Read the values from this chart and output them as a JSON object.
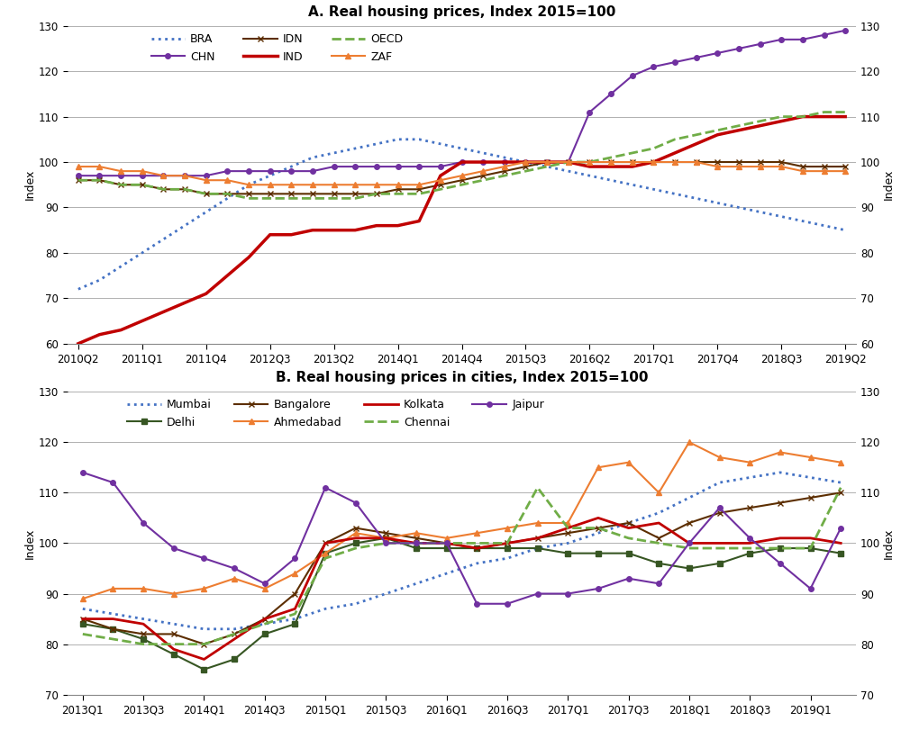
{
  "title_a": "A. Real housing prices, Index 2015=100",
  "title_b": "B. Real housing prices in cities, Index 2015=100",
  "ylabel": "Index",
  "ylim_a": [
    60,
    130
  ],
  "ylim_b": [
    70,
    130
  ],
  "yticks_a": [
    60,
    70,
    80,
    90,
    100,
    110,
    120,
    130
  ],
  "yticks_b": [
    70,
    80,
    90,
    100,
    110,
    120,
    130
  ],
  "panel_a": {
    "n_points": 37,
    "xtick_positions": [
      0,
      3,
      6,
      9,
      12,
      15,
      18,
      21,
      24,
      27,
      30,
      33,
      36
    ],
    "xtick_labels": [
      "2010Q2",
      "2011Q1",
      "2011Q4",
      "2012Q3",
      "2013Q2",
      "2014Q1",
      "2014Q4",
      "2015Q3",
      "2016Q2",
      "2017Q1",
      "2017Q4",
      "2018Q3",
      "2019Q2"
    ],
    "series": {
      "BRA": {
        "color": "#4472C4",
        "linestyle": "dotted",
        "marker": null,
        "linewidth": 2.0,
        "markersize": 0,
        "data_y": [
          72,
          74,
          77,
          80,
          83,
          86,
          89,
          92,
          95,
          97,
          99,
          101,
          102,
          103,
          104,
          105,
          105,
          104,
          103,
          102,
          101,
          100,
          99,
          98,
          97,
          96,
          95,
          94,
          93,
          92,
          91,
          90,
          89,
          88,
          87,
          86,
          85
        ]
      },
      "CHN": {
        "color": "#7030A0",
        "linestyle": "solid",
        "marker": "o",
        "linewidth": 1.5,
        "markersize": 4,
        "data_y": [
          97,
          97,
          97,
          97,
          97,
          97,
          97,
          98,
          98,
          98,
          98,
          98,
          99,
          99,
          99,
          99,
          99,
          99,
          100,
          100,
          100,
          100,
          100,
          100,
          111,
          115,
          119,
          121,
          122,
          123,
          124,
          125,
          126,
          127,
          127,
          128,
          129
        ]
      },
      "IDN": {
        "color": "#5C2E00",
        "linestyle": "solid",
        "marker": "x",
        "linewidth": 1.5,
        "markersize": 5,
        "data_y": [
          96,
          96,
          95,
          95,
          94,
          94,
          93,
          93,
          93,
          93,
          93,
          93,
          93,
          93,
          93,
          94,
          94,
          95,
          96,
          97,
          98,
          99,
          100,
          100,
          100,
          100,
          100,
          100,
          100,
          100,
          100,
          100,
          100,
          100,
          99,
          99,
          99
        ]
      },
      "IND": {
        "color": "#C00000",
        "linestyle": "solid",
        "marker": null,
        "linewidth": 2.5,
        "markersize": 0,
        "data_y": [
          60,
          62,
          63,
          65,
          67,
          69,
          71,
          75,
          79,
          84,
          84,
          85,
          85,
          85,
          86,
          86,
          87,
          97,
          100,
          100,
          100,
          100,
          100,
          100,
          99,
          99,
          99,
          100,
          102,
          104,
          106,
          107,
          108,
          109,
          110,
          110,
          110
        ]
      },
      "OECD": {
        "color": "#70AD47",
        "linestyle": "dashed",
        "marker": null,
        "linewidth": 2.0,
        "markersize": 0,
        "data_y": [
          96,
          96,
          95,
          95,
          94,
          94,
          93,
          93,
          92,
          92,
          92,
          92,
          92,
          92,
          93,
          93,
          93,
          94,
          95,
          96,
          97,
          98,
          99,
          100,
          100,
          101,
          102,
          103,
          105,
          106,
          107,
          108,
          109,
          110,
          110,
          111,
          111
        ]
      },
      "ZAF": {
        "color": "#ED7D31",
        "linestyle": "solid",
        "marker": "^",
        "linewidth": 1.5,
        "markersize": 4,
        "data_y": [
          99,
          99,
          98,
          98,
          97,
          97,
          96,
          96,
          95,
          95,
          95,
          95,
          95,
          95,
          95,
          95,
          95,
          96,
          97,
          98,
          99,
          100,
          100,
          100,
          100,
          100,
          100,
          100,
          100,
          100,
          99,
          99,
          99,
          99,
          98,
          98,
          98
        ]
      }
    }
  },
  "panel_b": {
    "n_points": 26,
    "xtick_positions": [
      0,
      2,
      4,
      6,
      8,
      10,
      12,
      14,
      16,
      18,
      20,
      22,
      24
    ],
    "xtick_labels": [
      "2013Q1",
      "2013Q3",
      "2014Q1",
      "2014Q3",
      "2015Q1",
      "2015Q3",
      "2016Q1",
      "2016Q3",
      "2017Q1",
      "2017Q3",
      "2018Q1",
      "2018Q3",
      "2019Q1"
    ],
    "series": {
      "Mumbai": {
        "color": "#4472C4",
        "linestyle": "dotted",
        "marker": null,
        "linewidth": 2.0,
        "markersize": 0,
        "data_y": [
          87,
          86,
          85,
          84,
          83,
          83,
          84,
          85,
          87,
          88,
          90,
          92,
          94,
          96,
          97,
          99,
          100,
          102,
          104,
          106,
          109,
          112,
          113,
          114,
          113,
          112
        ]
      },
      "Delhi": {
        "color": "#375623",
        "linestyle": "solid",
        "marker": "s",
        "linewidth": 1.5,
        "markersize": 5,
        "data_y": [
          84,
          83,
          81,
          78,
          75,
          77,
          82,
          84,
          98,
          100,
          101,
          99,
          99,
          99,
          99,
          99,
          98,
          98,
          98,
          96,
          95,
          96,
          98,
          99,
          99,
          98
        ]
      },
      "Bangalore": {
        "color": "#5C2E00",
        "linestyle": "solid",
        "marker": "x",
        "linewidth": 1.5,
        "markersize": 5,
        "data_y": [
          85,
          83,
          82,
          82,
          80,
          82,
          85,
          90,
          100,
          103,
          102,
          101,
          100,
          99,
          100,
          101,
          102,
          103,
          104,
          101,
          104,
          106,
          107,
          108,
          109,
          110
        ]
      },
      "Ahmedabad": {
        "color": "#ED7D31",
        "linestyle": "solid",
        "marker": "^",
        "linewidth": 1.5,
        "markersize": 5,
        "data_y": [
          89,
          91,
          91,
          90,
          91,
          93,
          91,
          94,
          98,
          102,
          101,
          102,
          101,
          102,
          103,
          104,
          104,
          115,
          116,
          110,
          120,
          117,
          116,
          118,
          117,
          116
        ]
      },
      "Kolkata": {
        "color": "#C00000",
        "linestyle": "solid",
        "marker": null,
        "linewidth": 2.0,
        "markersize": 0,
        "data_y": [
          85,
          85,
          84,
          79,
          77,
          81,
          85,
          87,
          100,
          101,
          101,
          100,
          100,
          99,
          100,
          101,
          103,
          105,
          103,
          104,
          100,
          100,
          100,
          101,
          101,
          100
        ]
      },
      "Chennai": {
        "color": "#70AD47",
        "linestyle": "dashed",
        "marker": null,
        "linewidth": 2.0,
        "markersize": 0,
        "data_y": [
          82,
          81,
          80,
          80,
          80,
          82,
          84,
          86,
          97,
          99,
          100,
          100,
          100,
          100,
          100,
          111,
          103,
          103,
          101,
          100,
          99,
          99,
          99,
          99,
          99,
          111
        ]
      },
      "Jaipur": {
        "color": "#7030A0",
        "linestyle": "solid",
        "marker": "o",
        "linewidth": 1.5,
        "markersize": 4,
        "data_y": [
          114,
          112,
          104,
          99,
          97,
          95,
          92,
          97,
          111,
          108,
          100,
          100,
          100,
          88,
          88,
          90,
          90,
          91,
          93,
          92,
          100,
          107,
          101,
          96,
          91,
          103
        ]
      }
    }
  },
  "background_color": "#ffffff",
  "grid_color": "#b0b0b0",
  "title_fontsize": 11,
  "label_fontsize": 9,
  "tick_fontsize": 8.5,
  "legend_fontsize": 9
}
